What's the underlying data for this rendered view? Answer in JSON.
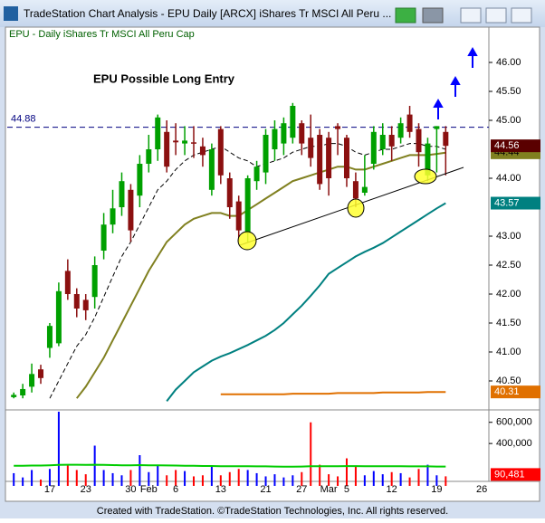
{
  "window": {
    "title": "TradeStation Chart Analysis - EPU Daily [ARCX] iShares Tr MSCI All Peru ..."
  },
  "footer": "Created with TradeStation. ©TradeStation Technologies, Inc. All rights reserved.",
  "chart_data": [
    {
      "type": "candlestick",
      "subtitle": "EPU - Daily  iShares Tr MSCI All Peru Cap",
      "annotation": "EPU Possible Long Entry",
      "categories": [
        null,
        null,
        null,
        null,
        "17",
        null,
        null,
        null,
        "23",
        null,
        null,
        null,
        null,
        "30",
        null,
        "Feb",
        null,
        null,
        "6",
        null,
        null,
        null,
        null,
        "13",
        null,
        null,
        null,
        null,
        "21",
        null,
        null,
        null,
        "27",
        null,
        null,
        "Mar",
        null,
        "5",
        null,
        null,
        null,
        null,
        "12",
        null,
        null,
        null,
        null,
        "19",
        null,
        null,
        null,
        null,
        "26"
      ],
      "open": [
        40.22,
        40.25,
        40.4,
        40.7,
        41.07,
        41.15,
        42.4,
        42.0,
        41.9,
        41.95,
        42.75,
        43.2,
        43.5,
        43.8,
        43.7,
        44.25,
        44.5,
        44.8,
        44.65,
        44.6,
        44.62,
        44.55,
        43.8,
        44.85,
        44.0,
        43.6,
        43.05,
        43.95,
        44.1,
        44.5,
        44.6,
        44.7,
        44.95,
        44.7,
        44.75,
        44.7,
        44.9,
        44.7,
        43.95,
        43.75,
        44.25,
        44.5,
        44.75,
        44.7,
        45.1,
        44.85,
        44.05,
        44.85,
        44.8,
        null,
        null,
        null,
        null
      ],
      "high": [
        40.3,
        40.45,
        40.8,
        40.78,
        41.5,
        42.2,
        42.6,
        42.1,
        42.0,
        42.65,
        43.4,
        43.8,
        44.1,
        43.9,
        44.4,
        44.75,
        45.1,
        45.0,
        44.95,
        44.9,
        44.9,
        44.7,
        44.6,
        44.9,
        44.1,
        43.7,
        44.05,
        44.3,
        44.85,
        45.0,
        45.05,
        45.3,
        45.0,
        45.1,
        44.85,
        44.8,
        44.95,
        44.75,
        44.1,
        44.4,
        44.9,
        44.95,
        44.9,
        45.05,
        45.25,
        44.95,
        44.7,
        44.9,
        44.9,
        null,
        null,
        null,
        null
      ],
      "low": [
        40.2,
        40.2,
        40.3,
        40.45,
        40.9,
        41.1,
        41.9,
        41.6,
        41.55,
        41.75,
        42.6,
        43.05,
        43.35,
        42.9,
        43.5,
        44.1,
        44.3,
        44.1,
        44.4,
        44.4,
        44.35,
        44.2,
        43.7,
        43.9,
        43.3,
        42.9,
        42.9,
        43.8,
        43.9,
        44.3,
        44.4,
        44.6,
        44.4,
        44.2,
        43.8,
        43.7,
        44.4,
        43.85,
        43.5,
        43.7,
        44.15,
        44.4,
        44.3,
        44.6,
        44.7,
        44.2,
        43.95,
        44.1,
        44.05,
        null,
        null,
        null,
        null
      ],
      "close": [
        40.26,
        40.36,
        40.62,
        40.55,
        41.45,
        42.05,
        42.0,
        41.75,
        41.72,
        42.5,
        43.2,
        43.48,
        43.95,
        43.1,
        44.25,
        44.5,
        45.05,
        44.2,
        44.62,
        44.65,
        44.6,
        44.4,
        44.5,
        44.05,
        43.5,
        43.1,
        44.0,
        44.2,
        44.75,
        44.85,
        44.95,
        45.25,
        44.6,
        44.35,
        43.9,
        44.0,
        44.85,
        44.0,
        43.65,
        43.85,
        44.8,
        44.75,
        44.55,
        44.95,
        44.8,
        44.45,
        44.6,
        44.9,
        44.56,
        null,
        null,
        null,
        null
      ],
      "up_color": "#00a000",
      "down_color": "#8b1010",
      "last_label_color": "#5a0000",
      "series": [
        {
          "color": "#000000",
          "dash": true,
          "values": [
            null,
            null,
            null,
            null,
            40.2,
            40.5,
            40.8,
            41.1,
            41.3,
            41.6,
            41.95,
            42.3,
            42.65,
            42.9,
            43.2,
            43.5,
            43.8,
            43.95,
            44.15,
            44.3,
            44.4,
            44.45,
            44.5,
            44.55,
            44.45,
            44.35,
            44.3,
            44.2,
            44.25,
            44.3,
            44.35,
            44.45,
            44.5,
            44.55,
            44.55,
            44.6,
            44.6,
            44.55,
            44.45,
            44.4,
            44.45,
            44.5,
            44.5,
            44.55,
            44.6,
            44.6,
            44.55,
            44.55,
            44.5,
            null,
            null,
            null,
            null
          ]
        },
        {
          "color": "#808020",
          "last_label": true,
          "label_text": "#000000",
          "values": [
            null,
            null,
            null,
            null,
            null,
            null,
            null,
            40.2,
            40.4,
            40.65,
            40.9,
            41.2,
            41.5,
            41.8,
            42.1,
            42.4,
            42.65,
            42.9,
            43.05,
            43.2,
            43.3,
            43.35,
            43.4,
            43.4,
            43.35,
            43.35,
            43.45,
            43.55,
            43.65,
            43.75,
            43.85,
            43.95,
            44.0,
            44.05,
            44.1,
            44.15,
            44.2,
            44.2,
            44.15,
            44.15,
            44.2,
            44.25,
            44.3,
            44.35,
            44.4,
            44.4,
            44.4,
            44.42,
            44.44,
            null,
            null,
            null,
            null
          ]
        },
        {
          "color": "#008080",
          "last_label": true,
          "label_text": "#ffffff",
          "values": [
            null,
            null,
            null,
            null,
            null,
            null,
            null,
            null,
            null,
            null,
            null,
            null,
            null,
            null,
            null,
            null,
            null,
            40.15,
            40.35,
            40.5,
            40.65,
            40.75,
            40.85,
            40.92,
            40.98,
            41.05,
            41.12,
            41.2,
            41.28,
            41.38,
            41.5,
            41.65,
            41.8,
            41.97,
            42.15,
            42.35,
            42.45,
            42.55,
            42.65,
            42.73,
            42.8,
            42.88,
            42.98,
            43.08,
            43.18,
            43.28,
            43.38,
            43.48,
            43.57,
            null,
            null,
            null,
            null
          ]
        },
        {
          "color": "#e07000",
          "last_label": true,
          "label_text": "#ffffff",
          "values": [
            null,
            null,
            null,
            null,
            null,
            null,
            null,
            null,
            null,
            null,
            null,
            null,
            null,
            null,
            null,
            null,
            null,
            null,
            null,
            null,
            null,
            null,
            null,
            40.27,
            40.27,
            40.27,
            40.27,
            40.27,
            40.27,
            40.27,
            40.27,
            40.28,
            40.28,
            40.28,
            40.28,
            40.28,
            40.29,
            40.29,
            40.29,
            40.29,
            40.29,
            40.3,
            40.3,
            40.3,
            40.3,
            40.3,
            40.31,
            40.31,
            40.31,
            null,
            null,
            null,
            null
          ]
        }
      ],
      "hline": 44.88,
      "hline_color": "#000080",
      "ylim": [
        40.05,
        46.6
      ],
      "yticks": [
        {
          "value": 46,
          "label": "46.00"
        },
        {
          "value": 45.5,
          "label": "45.50"
        },
        {
          "value": 45,
          "label": "45.00"
        },
        {
          "value": 44,
          "label": "44.00"
        },
        {
          "value": 43,
          "label": "43.00"
        },
        {
          "value": 42.5,
          "label": "42.50"
        },
        {
          "value": 42,
          "label": "42.00"
        },
        {
          "value": 41.5,
          "label": "41.50"
        },
        {
          "value": 41,
          "label": "41.00"
        },
        {
          "value": 40.5,
          "label": "40.50"
        }
      ]
    },
    {
      "type": "bar",
      "values": [
        120000,
        80000,
        150000,
        60000,
        160000,
        700000,
        200000,
        150000,
        110000,
        380000,
        150000,
        120000,
        100000,
        150000,
        290000,
        130000,
        200000,
        100000,
        150000,
        140000,
        90000,
        100000,
        180000,
        100000,
        130000,
        160000,
        150000,
        120000,
        90000,
        110000,
        80000,
        100000,
        130000,
        600000,
        200000,
        110000,
        90000,
        260000,
        180000,
        100000,
        140000,
        110000,
        130000,
        120000,
        80000,
        160000,
        200000,
        100000,
        90481,
        null,
        null,
        null,
        null
      ],
      "value_labels": [
        null,
        null,
        null,
        null,
        null,
        null,
        null,
        null,
        null,
        null,
        null,
        null,
        null,
        null,
        null,
        null,
        null,
        null,
        null,
        null,
        null,
        null,
        null,
        null,
        null,
        null,
        null,
        null,
        null,
        null,
        null,
        null,
        null,
        null,
        null,
        null,
        null,
        null,
        null,
        null,
        null,
        null,
        null,
        null,
        null,
        null,
        null,
        null,
        "90,481",
        null,
        null,
        null,
        null
      ],
      "up_color": "#0000ff",
      "down_color": "#ff0000",
      "series": [
        {
          "color": "#00cc00",
          "values": [
            190000,
            190000,
            192000,
            192000,
            195000,
            198000,
            200000,
            200000,
            198000,
            200000,
            198000,
            196000,
            195000,
            195000,
            196000,
            195000,
            195000,
            193000,
            192000,
            190000,
            190000,
            188000,
            188000,
            186000,
            185000,
            185000,
            185000,
            184000,
            184000,
            183000,
            182000,
            182000,
            183000,
            185000,
            186000,
            186000,
            186000,
            187000,
            187000,
            186000,
            186000,
            185000,
            185000,
            185000,
            184000,
            184000,
            184000,
            183000,
            183000,
            null,
            null,
            null,
            null
          ]
        }
      ],
      "ylim": [
        0,
        700000
      ],
      "yticks": [
        {
          "value": 600000,
          "label": "600,000"
        },
        {
          "value": 400000,
          "label": "400,000"
        }
      ]
    }
  ]
}
